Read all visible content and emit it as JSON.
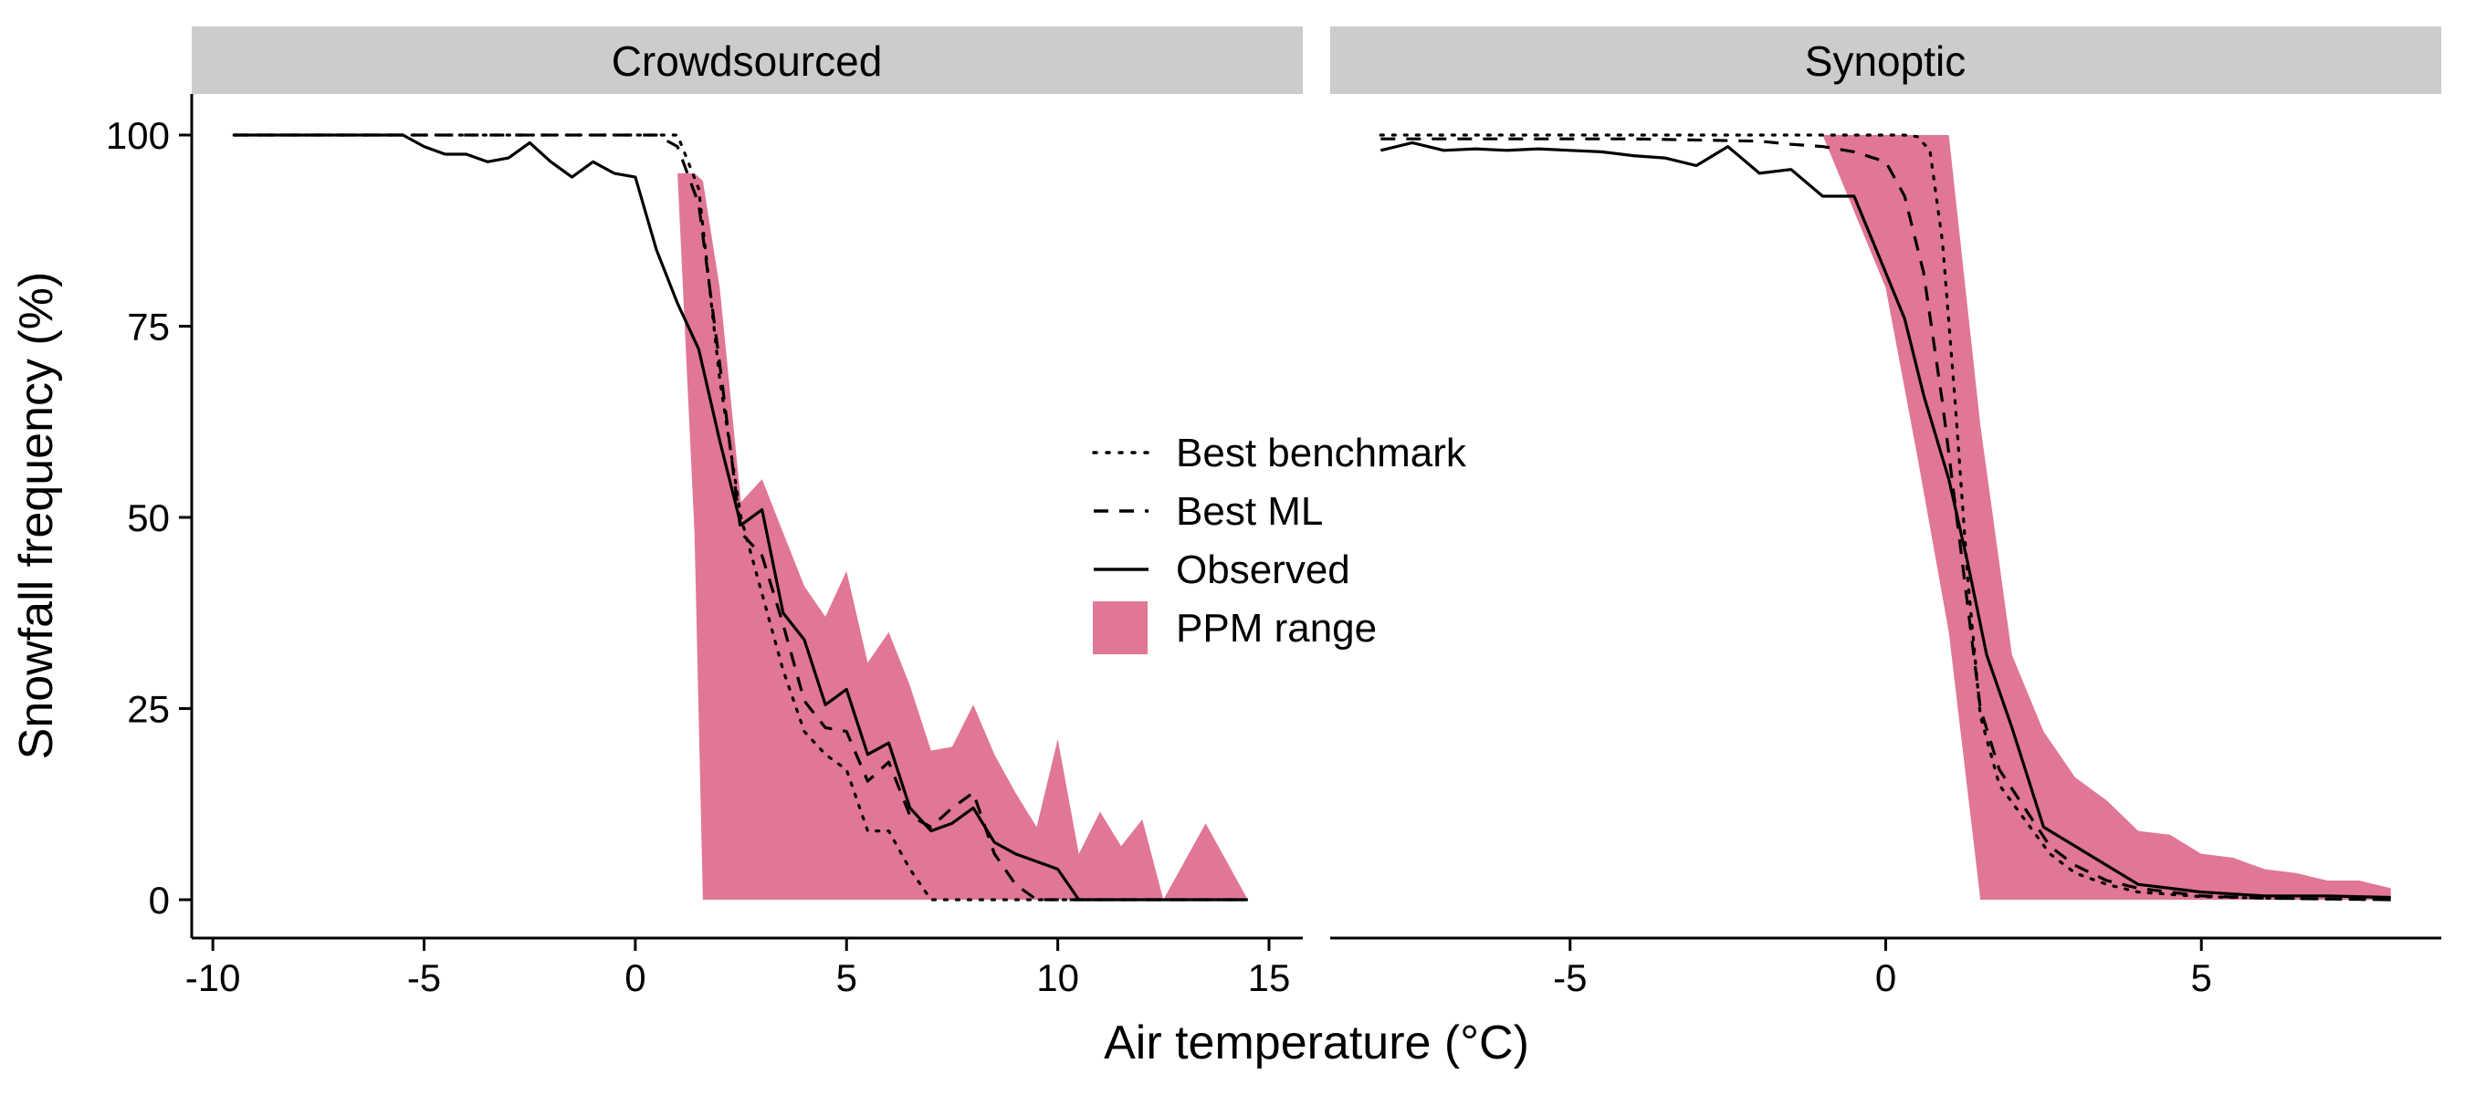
{
  "chart_data": {
    "type": "line",
    "xlabel": "Air temperature (°C)",
    "ylabel": "Snowfall frequency (%)",
    "ylim": [
      0,
      100
    ],
    "yticks": [
      "0",
      "25",
      "50",
      "75",
      "100"
    ],
    "grid": false,
    "legend": {
      "placement": "center",
      "items": [
        {
          "label": "Best benchmark",
          "style": "dotted"
        },
        {
          "label": "Best ML",
          "style": "dashed"
        },
        {
          "label": "Observed",
          "style": "solid"
        },
        {
          "label": "PPM range",
          "style": "fill"
        }
      ]
    },
    "colors": {
      "ppm_fill": "#e07795",
      "line": "#000000",
      "strip_bg": "#cccccc"
    },
    "panels": [
      {
        "title": "Crowdsourced",
        "xlim": [
          -10.5,
          15.8
        ],
        "xticks": [
          "-10",
          "-5",
          "0",
          "5",
          "10",
          "15"
        ],
        "ppm_range": {
          "x": [
            0,
            0.5,
            0.6,
            1.0,
            1.4,
            1.6,
            2.0,
            2.5,
            3.0,
            3.5,
            4.0,
            4.5,
            5.0,
            5.5,
            6.0,
            6.5,
            7.0,
            7.5,
            8.0,
            8.5,
            9.0,
            9.5,
            10.0,
            10.5,
            11.0,
            11.5,
            12.0,
            12.5,
            13.0,
            13.5,
            14.0,
            14.5
          ],
          "upper": [
            100,
            97,
            96,
            95,
            95,
            94,
            80,
            52,
            55,
            48,
            41,
            37,
            43,
            31,
            35,
            28,
            19.5,
            20,
            25.5,
            19,
            14,
            9.5,
            21,
            6,
            11.5,
            7,
            10.5,
            0,
            5,
            10,
            5,
            0
          ],
          "lower": [
            100,
            97,
            96,
            95,
            48,
            0,
            0,
            0,
            0,
            0,
            0,
            0,
            0,
            0,
            0,
            0,
            0,
            0,
            0,
            0,
            0,
            0,
            0,
            0,
            0,
            0,
            0,
            0,
            0,
            0,
            0,
            0
          ]
        },
        "series": [
          {
            "name": "Observed",
            "style": "solid",
            "x": [
              -9.5,
              -9,
              -8.5,
              -8,
              -7.5,
              -7,
              -6.5,
              -6,
              -5.5,
              -5,
              -4.5,
              -4,
              -3.5,
              -3,
              -2.5,
              -2,
              -1.5,
              -1,
              -0.5,
              0,
              0.5,
              1,
              1.5,
              2,
              2.5,
              3,
              3.5,
              4,
              4.5,
              5,
              5.5,
              6,
              6.5,
              7,
              7.5,
              8,
              8.5,
              9,
              9.5,
              10,
              10.5,
              11,
              11.5,
              12,
              12.5,
              13,
              13.5,
              14,
              14.5
            ],
            "y": [
              100,
              100,
              100,
              100,
              100,
              100,
              100,
              100,
              100,
              98.5,
              97.5,
              97.5,
              96.5,
              97,
              99,
              96.5,
              94.5,
              96.5,
              95,
              94.5,
              85,
              78,
              72,
              60,
              49,
              51,
              37.5,
              34,
              25.5,
              27.5,
              19,
              20.5,
              12,
              9,
              10,
              12,
              7.5,
              6,
              5,
              4,
              0,
              0,
              0,
              0,
              0,
              0,
              0,
              0,
              0
            ]
          },
          {
            "name": "Best ML",
            "style": "dashed",
            "x": [
              -9.5,
              -8,
              -6,
              -4,
              -2,
              -1,
              0,
              0.5,
              1.0,
              1.5,
              2.0,
              2.5,
              3.0,
              3.5,
              4.0,
              4.5,
              5.0,
              5.5,
              6.0,
              6.5,
              7.0,
              7.5,
              8.0,
              8.5,
              9.0,
              9.5,
              10,
              11,
              12,
              13,
              14,
              14.5
            ],
            "y": [
              100,
              100,
              100,
              100,
              100,
              100,
              100,
              100,
              98.5,
              91,
              70,
              48,
              45,
              36,
              26,
              22.5,
              22,
              15.5,
              18,
              11,
              9.5,
              12,
              14,
              6,
              2,
              0,
              0,
              0,
              0,
              0,
              0,
              0
            ]
          },
          {
            "name": "Best benchmark",
            "style": "dotted",
            "x": [
              -9.5,
              -8,
              -6,
              -4,
              -2,
              -1,
              0,
              0.5,
              1.0,
              1.5,
              2.0,
              2.5,
              3.0,
              3.5,
              4.0,
              4.5,
              5.0,
              5.5,
              6.0,
              6.5,
              7.0,
              8,
              9,
              10,
              11,
              12,
              13,
              14,
              14.5
            ],
            "y": [
              100,
              100,
              100,
              100,
              100,
              100,
              100,
              100,
              100,
              93,
              68,
              50,
              40,
              30,
              22,
              19,
              17,
              9,
              9,
              4,
              0,
              0,
              0,
              0,
              0,
              0,
              0,
              0,
              0
            ]
          }
        ]
      },
      {
        "title": "Synoptic",
        "xlim": [
          -8.8,
          8.8
        ],
        "xticks": [
          "-5",
          "0",
          "5"
        ],
        "ppm_range": {
          "x": [
            -8,
            -3,
            -1,
            0,
            0.5,
            1.0,
            1.5,
            2.0,
            2.5,
            3.0,
            3.5,
            4.0,
            4.5,
            5.0,
            5.5,
            6.0,
            6.5,
            7.0,
            7.5,
            8.0
          ],
          "upper": [
            100,
            100,
            100,
            100,
            100,
            100,
            62,
            32,
            22,
            16,
            13,
            9,
            8.5,
            6,
            5.5,
            4,
            3.5,
            2.5,
            2.5,
            1.5
          ],
          "lower": [
            100,
            100,
            100,
            80,
            58,
            35,
            0,
            0,
            0,
            0,
            0,
            0,
            0,
            0,
            0,
            0,
            0,
            0,
            0,
            0
          ]
        },
        "series": [
          {
            "name": "Observed",
            "style": "solid",
            "x": [
              -8,
              -7.5,
              -7,
              -6.5,
              -6,
              -5.5,
              -5,
              -4.5,
              -4,
              -3.5,
              -3,
              -2.5,
              -2,
              -1.5,
              -1,
              -0.5,
              0,
              0.3,
              0.6,
              1.0,
              1.3,
              1.6,
              2.0,
              2.5,
              3.0,
              3.5,
              4.0,
              5.0,
              6.0,
              7.0,
              8.0
            ],
            "y": [
              98,
              99,
              98,
              98.2,
              98,
              98.2,
              98,
              97.8,
              97.3,
              97,
              96,
              98.5,
              95,
              95.5,
              92,
              92,
              82,
              76,
              66,
              55,
              44,
              32,
              22.5,
              9.5,
              7,
              4.5,
              2,
              1,
              0.5,
              0.5,
              0.3
            ]
          },
          {
            "name": "Best ML",
            "style": "dashed",
            "x": [
              -8,
              -6,
              -4,
              -2,
              -1.5,
              -1,
              -0.5,
              0,
              0.3,
              0.6,
              0.9,
              1.2,
              1.5,
              1.8,
              2.2,
              2.6,
              3.0,
              3.5,
              4.0,
              5.0,
              6.0,
              7.0,
              8.0
            ],
            "y": [
              99.5,
              99.5,
              99.5,
              99.2,
              98.8,
              98.5,
              97.8,
              96.5,
              92,
              82,
              65,
              45,
              25,
              17,
              12,
              7,
              4.5,
              2.5,
              1.5,
              0.5,
              0.2,
              0.1,
              0
            ],
            "note": "dashed and dotted overlap above 2 °C"
          },
          {
            "name": "Best benchmark",
            "style": "dotted",
            "x": [
              -8,
              -6,
              -4,
              -2,
              -1,
              0,
              0.3,
              0.5,
              0.7,
              0.9,
              1.1,
              1.3,
              1.5,
              1.8,
              2.2,
              2.6,
              3.0,
              3.5,
              4.0,
              5.0,
              6.0,
              7.0,
              8.0
            ],
            "y": [
              100,
              100,
              100,
              100,
              100,
              100,
              100,
              99.8,
              98,
              86,
              65,
              42,
              24,
              15,
              10.5,
              6,
              3.5,
              2,
              1,
              0.4,
              0.2,
              0.1,
              0
            ]
          }
        ]
      }
    ]
  }
}
